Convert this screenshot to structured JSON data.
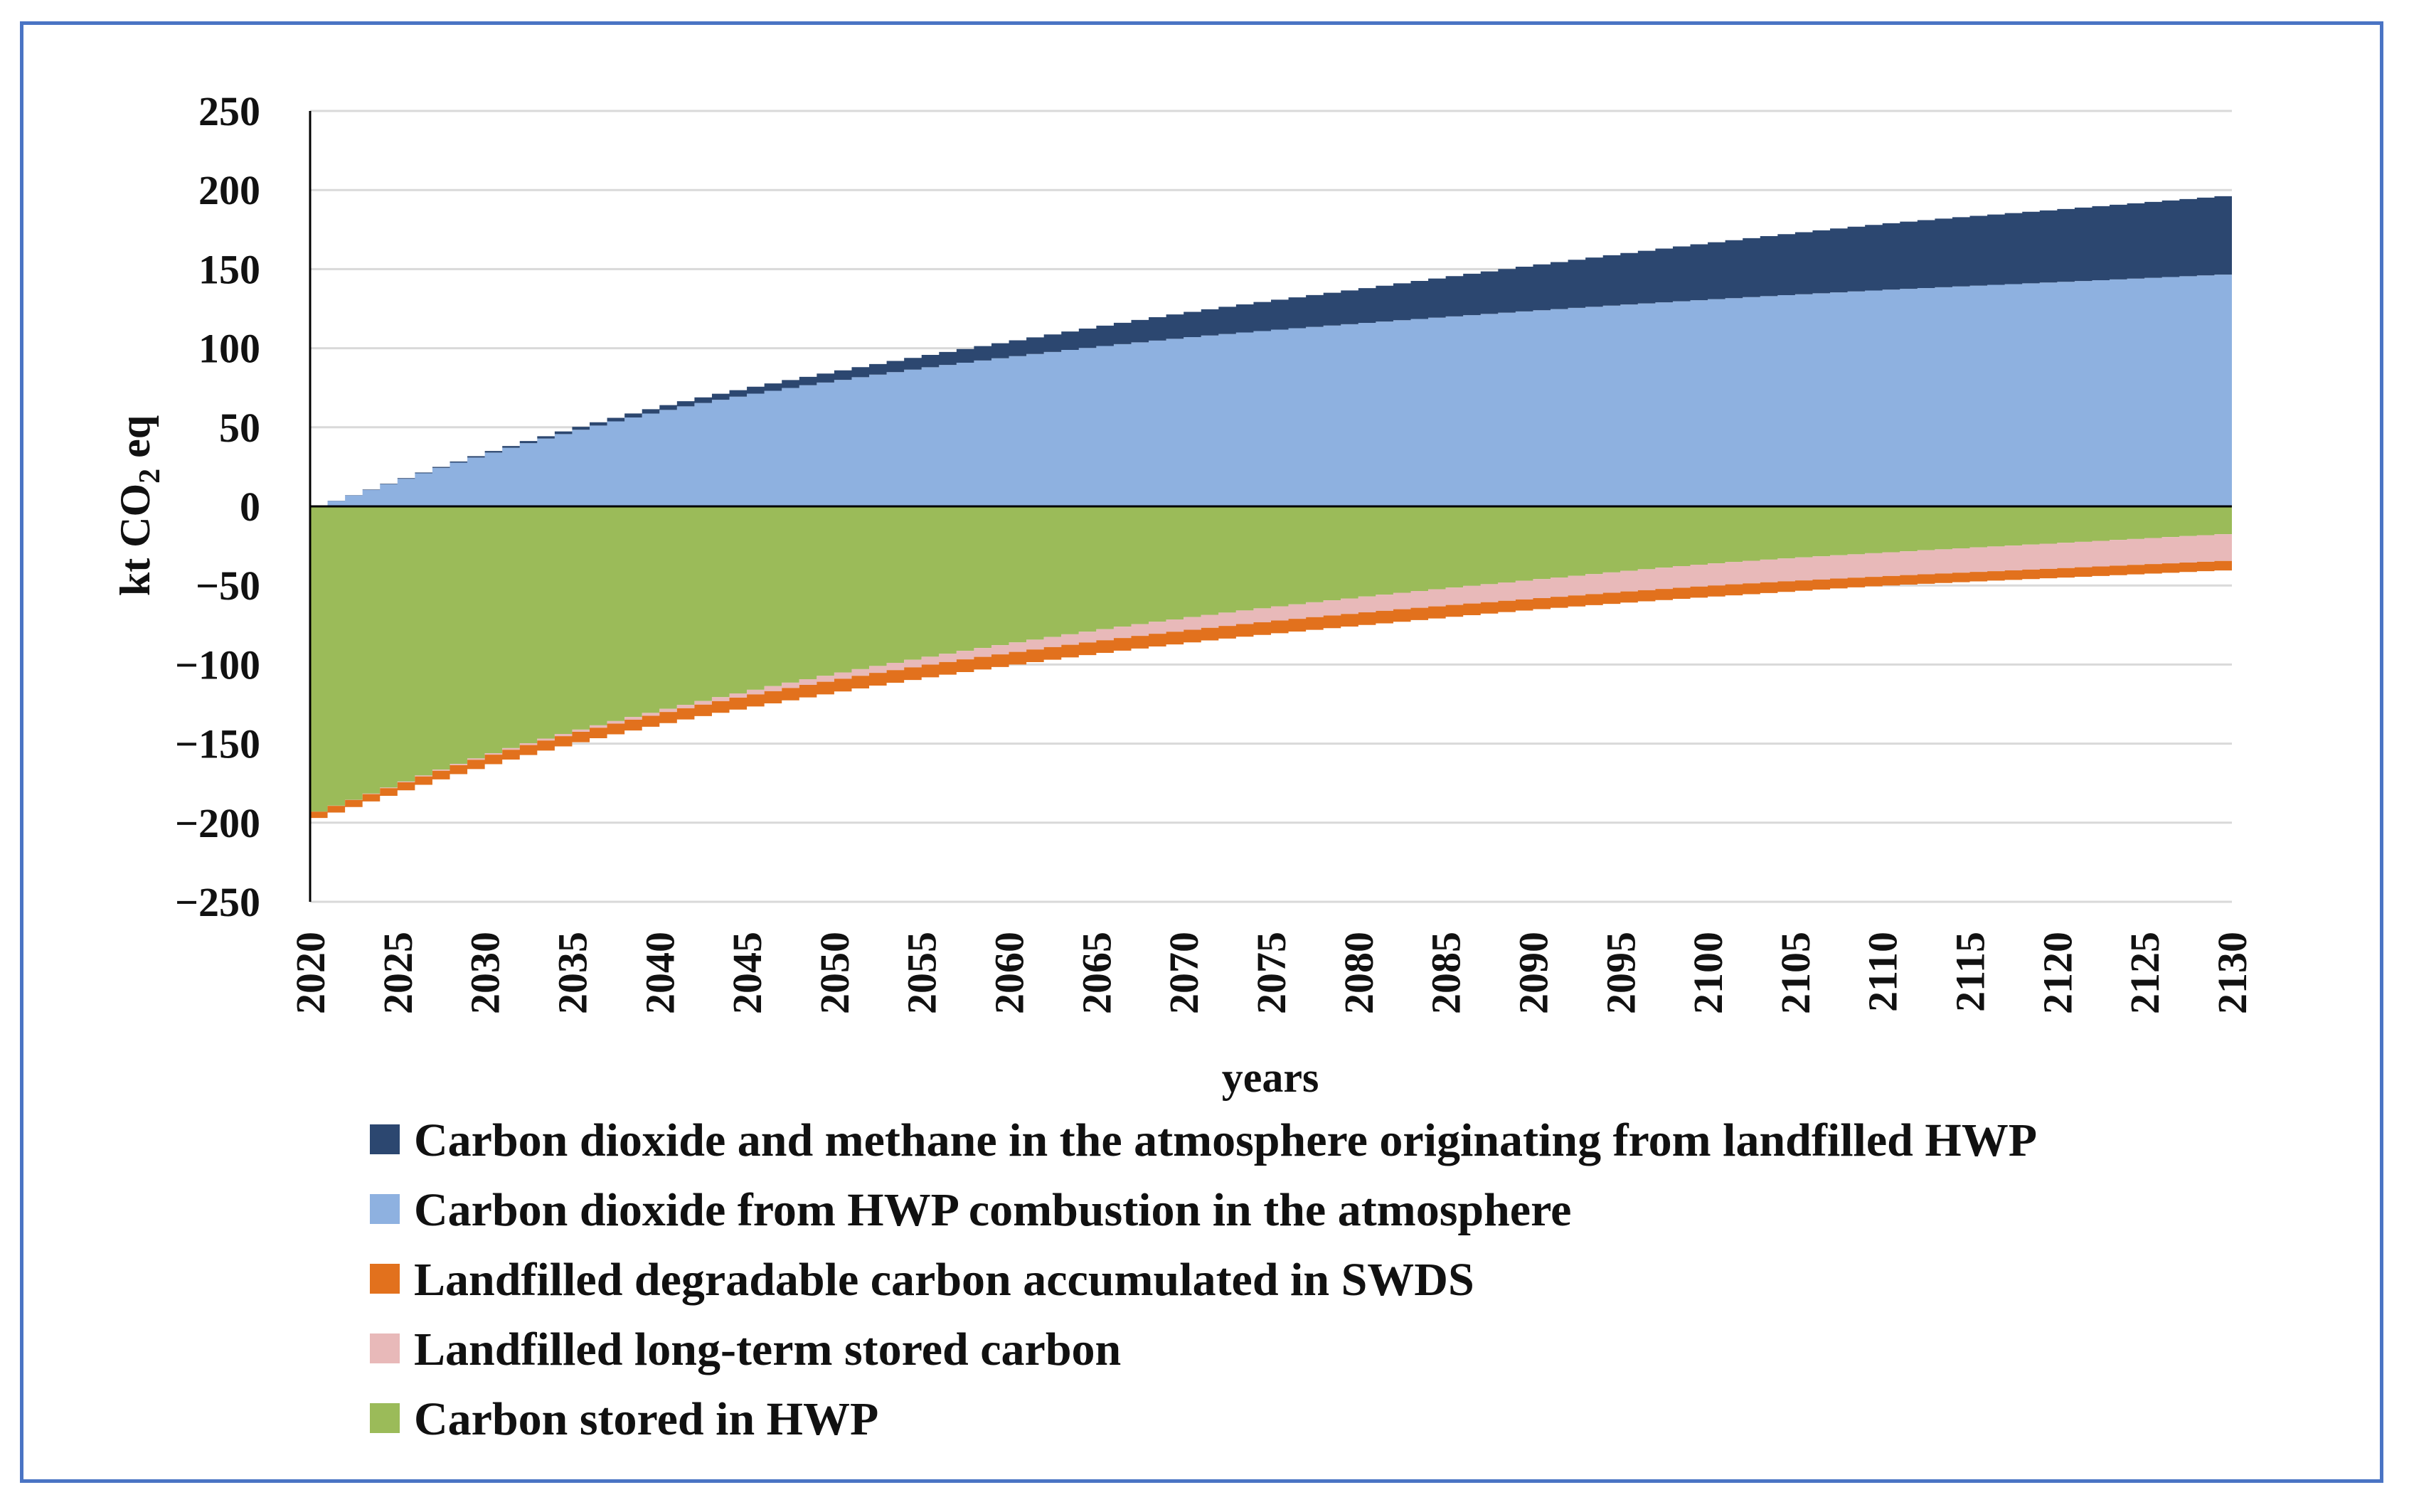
{
  "chart_data": {
    "type": "area",
    "stacked": true,
    "x_start": 2020,
    "x_end": 2130,
    "x_ticks": [
      "2020",
      "2025",
      "2030",
      "2035",
      "2040",
      "2045",
      "2050",
      "2055",
      "2060",
      "2065",
      "2070",
      "2075",
      "2080",
      "2085",
      "2090",
      "2095",
      "2100",
      "2105",
      "2110",
      "2115",
      "2120",
      "2125",
      "2130"
    ],
    "y_ticks": [
      "250",
      "200",
      "150",
      "100",
      "50",
      "0",
      "−50",
      "−100",
      "−150",
      "−200",
      "−250"
    ],
    "ylim": [
      -250,
      250
    ],
    "grid": true,
    "xlabel": "years",
    "ylabel": {
      "prefix": "kt CO",
      "subscript": "2",
      "suffix": " eq"
    },
    "legend_position": "bottom",
    "sample_years": [
      2020,
      2030,
      2040,
      2050,
      2060,
      2070,
      2080,
      2090,
      2100,
      2110,
      2120,
      2130
    ],
    "series": [
      {
        "name": "Carbon dioxide and methane in the atmosphere originating from landfilled HWP",
        "color": "#2c4770",
        "side": "positive",
        "values": [
          0,
          1,
          3,
          6,
          10,
          16,
          22,
          29,
          36,
          42,
          46,
          50
        ]
      },
      {
        "name": "Carbon dioxide from HWP combustion in the atmosphere",
        "color": "#8eb1e0",
        "side": "positive",
        "values": [
          0,
          34,
          61,
          80,
          95,
          107,
          116,
          124,
          131,
          137,
          142,
          147
        ]
      },
      {
        "name": "Landfilled degradable carbon accumulated in SWDS",
        "color": "#e2711d",
        "side": "negative",
        "values": [
          -4,
          -6,
          -7,
          -8,
          -8,
          -8,
          -8,
          -7,
          -7,
          -6,
          -6,
          -6
        ]
      },
      {
        "name": "Landfilled long-term stored carbon",
        "color": "#e8b9b9",
        "side": "negative",
        "values": [
          0,
          -1,
          -2,
          -4,
          -6,
          -8,
          -10,
          -12,
          -14,
          -15,
          -16,
          -17
        ]
      },
      {
        "name": "Carbon stored in HWP",
        "color": "#9bbb59",
        "side": "negative",
        "values": [
          -193,
          -156,
          -128,
          -105,
          -86,
          -70,
          -57,
          -46,
          -36,
          -29,
          -23,
          -17
        ]
      }
    ]
  }
}
